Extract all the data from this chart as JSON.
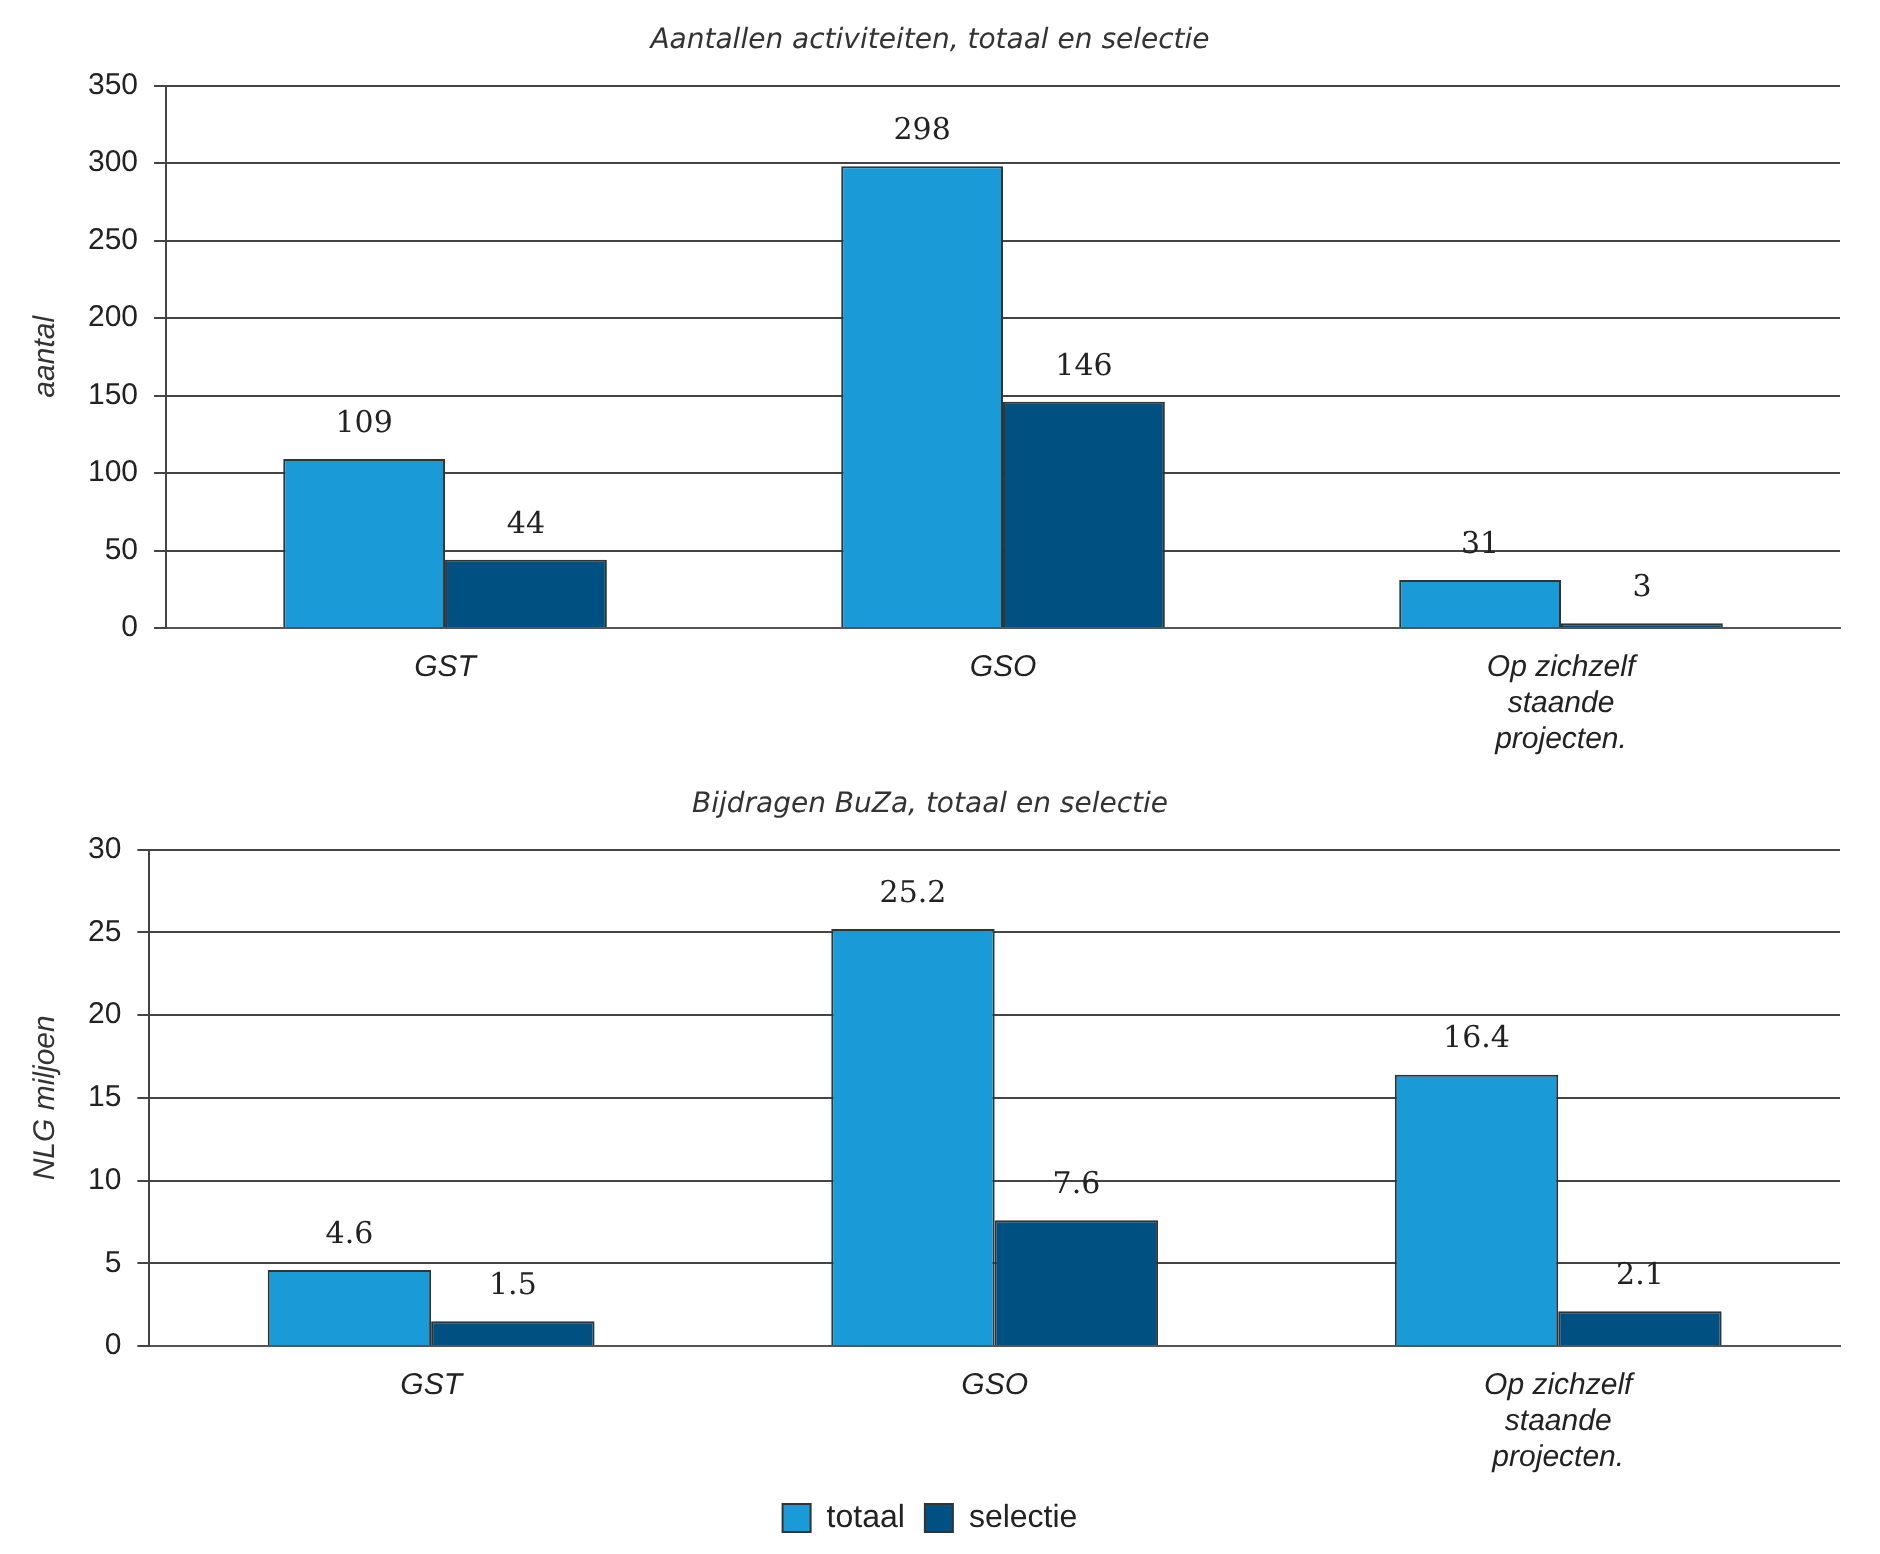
{
  "chart_data": [
    {
      "type": "bar",
      "title": "Aantallen activiteiten, totaal en selectie",
      "ylabel": "aantal",
      "categories": [
        "GST",
        "GSO",
        "Op zichzelf staande projecten."
      ],
      "series": [
        {
          "color": "#1a9ad6",
          "values": [
            109,
            298,
            31
          ]
        },
        {
          "color": "#005082",
          "values": [
            44,
            146,
            3
          ]
        }
      ],
      "ylim": [
        0,
        350
      ],
      "yticks": [
        0,
        50,
        100,
        150,
        200,
        250,
        300,
        350
      ],
      "grid": "y",
      "data_labels": true
    },
    {
      "type": "bar",
      "title": "Bijdragen BuZa, totaal en selectie",
      "ylabel": "NLG miljoen",
      "categories": [
        "GST",
        "GSO",
        "Op zichzelf staande projecten."
      ],
      "series": [
        {
          "name": "totaal",
          "color": "#1a9ad6",
          "values": [
            4.6,
            25.2,
            16.4
          ]
        },
        {
          "name": "selectie",
          "color": "#005082",
          "values": [
            1.5,
            7.6,
            2.1
          ]
        }
      ],
      "ylim": [
        0,
        30
      ],
      "yticks": [
        0,
        5,
        10,
        15,
        20,
        25,
        30
      ],
      "grid": "y",
      "data_labels": true,
      "legend": "bottom"
    }
  ]
}
